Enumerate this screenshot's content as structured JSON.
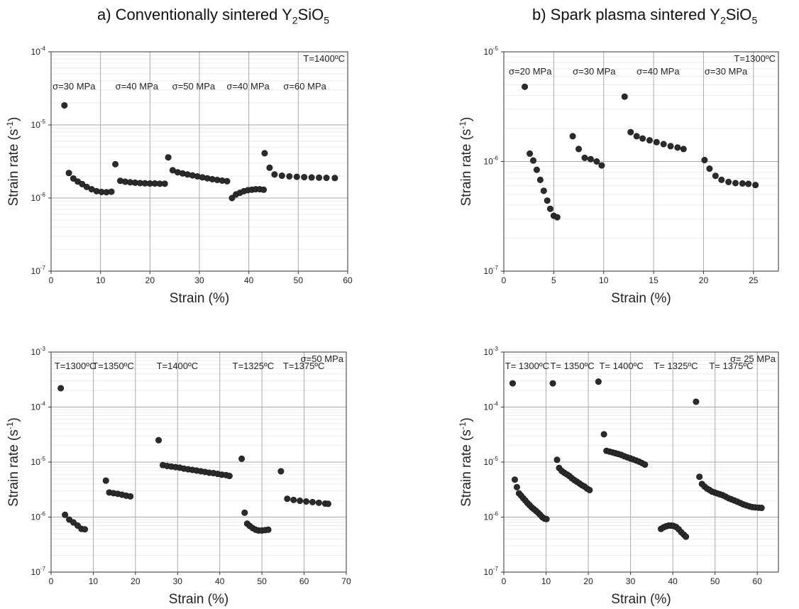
{
  "titles": {
    "left": {
      "pre": "a) Conventionally sintered Y",
      "sub1": "2",
      "mid": "SiO",
      "sub2": "5"
    },
    "right": {
      "pre": "b) Spark plasma sintered Y",
      "sub1": "2",
      "mid": "SiO",
      "sub2": "5"
    }
  },
  "chart_data": [
    {
      "type": "scatter",
      "panel": "top-left",
      "xlabel": "Strain (%)",
      "ylabel": "Strain rate (s-1)",
      "yscale": "log",
      "xlim": [
        0,
        60
      ],
      "ylim": [
        1e-07,
        0.0001
      ],
      "xticks": [
        0,
        10,
        20,
        30,
        40,
        50,
        60
      ],
      "yticks": [
        {
          "v": 1e-07,
          "exp": "-7"
        },
        {
          "v": 1e-06,
          "exp": "-6"
        },
        {
          "v": 1e-05,
          "exp": "-5"
        },
        {
          "v": 0.0001,
          "exp": "-4"
        }
      ],
      "condition": "T=1400ºC",
      "segment_labels": [
        {
          "text": "σ=30 MPa",
          "x": 0.3
        },
        {
          "text": "σ=40 MPa",
          "x": 13
        },
        {
          "text": "σ=50 MPa",
          "x": 24.5
        },
        {
          "text": "σ=40 MPa",
          "x": 35.5
        },
        {
          "text": "σ=60 MPa",
          "x": 47
        }
      ],
      "grid": true,
      "points": [
        [
          2.7,
          1.85e-05
        ],
        [
          3.6,
          2.2e-06
        ],
        [
          4.5,
          1.85e-06
        ],
        [
          5.4,
          1.68e-06
        ],
        [
          6.3,
          1.55e-06
        ],
        [
          7.2,
          1.42e-06
        ],
        [
          8.2,
          1.32e-06
        ],
        [
          9.2,
          1.24e-06
        ],
        [
          10.2,
          1.21e-06
        ],
        [
          11.2,
          1.2e-06
        ],
        [
          12.2,
          1.22e-06
        ],
        [
          13,
          2.9e-06
        ],
        [
          14,
          1.72e-06
        ],
        [
          15,
          1.67e-06
        ],
        [
          16,
          1.64e-06
        ],
        [
          17,
          1.62e-06
        ],
        [
          18,
          1.6e-06
        ],
        [
          19,
          1.59e-06
        ],
        [
          20,
          1.58e-06
        ],
        [
          21,
          1.58e-06
        ],
        [
          22,
          1.57e-06
        ],
        [
          23,
          1.57e-06
        ],
        [
          23.7,
          3.6e-06
        ],
        [
          24.6,
          2.4e-06
        ],
        [
          25.6,
          2.25e-06
        ],
        [
          26.6,
          2.17e-06
        ],
        [
          27.6,
          2.1e-06
        ],
        [
          28.6,
          2.04e-06
        ],
        [
          29.6,
          1.98e-06
        ],
        [
          30.6,
          1.92e-06
        ],
        [
          31.6,
          1.86e-06
        ],
        [
          32.6,
          1.81e-06
        ],
        [
          33.6,
          1.77e-06
        ],
        [
          34.6,
          1.73e-06
        ],
        [
          35.6,
          1.7e-06
        ],
        [
          36.6,
          1e-06
        ],
        [
          37.4,
          1.12e-06
        ],
        [
          38.2,
          1.18e-06
        ],
        [
          39,
          1.24e-06
        ],
        [
          39.8,
          1.28e-06
        ],
        [
          40.6,
          1.3e-06
        ],
        [
          41.4,
          1.32e-06
        ],
        [
          42.2,
          1.32e-06
        ],
        [
          43,
          1.3e-06
        ],
        [
          43.2,
          4.1e-06
        ],
        [
          44.2,
          2.6e-06
        ],
        [
          45.2,
          2.1e-06
        ],
        [
          46.7,
          2.02e-06
        ],
        [
          48.2,
          1.98e-06
        ],
        [
          49.7,
          1.95e-06
        ],
        [
          51.2,
          1.93e-06
        ],
        [
          52.7,
          1.91e-06
        ],
        [
          54.2,
          1.9e-06
        ],
        [
          55.7,
          1.89e-06
        ],
        [
          57.4,
          1.88e-06
        ]
      ]
    },
    {
      "type": "scatter",
      "panel": "top-right",
      "xlabel": "Strain (%)",
      "ylabel": "Strain rate (s-1)",
      "yscale": "log",
      "xlim": [
        0,
        27.5
      ],
      "ylim": [
        1e-07,
        1e-05
      ],
      "xticks": [
        0,
        5,
        10,
        15,
        20,
        25
      ],
      "yticks": [
        {
          "v": 1e-07,
          "exp": "-7"
        },
        {
          "v": 1e-06,
          "exp": "-6"
        },
        {
          "v": 1e-05,
          "exp": "-5"
        }
      ],
      "condition": "T=1300ºC",
      "segment_labels": [
        {
          "text": "σ=20 MPa",
          "x": 0.5
        },
        {
          "text": "σ=30 MPa",
          "x": 6.9
        },
        {
          "text": "σ=40 MPa",
          "x": 13.3
        },
        {
          "text": "σ=30 MPa",
          "x": 20.1
        }
      ],
      "grid": true,
      "points": [
        [
          2.1,
          4.8e-06
        ],
        [
          2.6,
          1.18e-06
        ],
        [
          2.95,
          1.02e-06
        ],
        [
          3.3,
          8.4e-07
        ],
        [
          3.65,
          6.8e-07
        ],
        [
          4,
          5.4e-07
        ],
        [
          4.35,
          4.4e-07
        ],
        [
          4.65,
          3.7e-07
        ],
        [
          5.0,
          3.2e-07
        ],
        [
          5.35,
          3.1e-07
        ],
        [
          6.9,
          1.7e-06
        ],
        [
          7.5,
          1.3e-06
        ],
        [
          8.1,
          1.08e-06
        ],
        [
          8.7,
          1.05e-06
        ],
        [
          9.3,
          1e-06
        ],
        [
          9.8,
          9.2e-07
        ],
        [
          12.1,
          3.9e-06
        ],
        [
          12.7,
          1.85e-06
        ],
        [
          13.3,
          1.7e-06
        ],
        [
          13.9,
          1.62e-06
        ],
        [
          14.6,
          1.56e-06
        ],
        [
          15.3,
          1.5e-06
        ],
        [
          16,
          1.44e-06
        ],
        [
          16.7,
          1.38e-06
        ],
        [
          17.4,
          1.34e-06
        ],
        [
          18,
          1.3e-06
        ],
        [
          20.1,
          1.03e-06
        ],
        [
          20.6,
          8.6e-07
        ],
        [
          21.2,
          7.4e-07
        ],
        [
          21.8,
          6.8e-07
        ],
        [
          22.5,
          6.5e-07
        ],
        [
          23.2,
          6.35e-07
        ],
        [
          23.9,
          6.3e-07
        ],
        [
          24.5,
          6.25e-07
        ],
        [
          25.2,
          6.1e-07
        ]
      ]
    },
    {
      "type": "scatter",
      "panel": "bottom-left",
      "xlabel": "Strain (%)",
      "ylabel": "Strain rate (s-1)",
      "yscale": "log",
      "xlim": [
        0,
        70
      ],
      "ylim": [
        1e-07,
        0.001
      ],
      "xticks": [
        0,
        10,
        20,
        30,
        40,
        50,
        60,
        70
      ],
      "yticks": [
        {
          "v": 1e-07,
          "exp": "-7"
        },
        {
          "v": 1e-06,
          "exp": "-6"
        },
        {
          "v": 1e-05,
          "exp": "-5"
        },
        {
          "v": 0.0001,
          "exp": "-4"
        },
        {
          "v": 0.001,
          "exp": "-3"
        }
      ],
      "condition": "σ=50 MPa",
      "segment_labels": [
        {
          "text": "T=1300ºC",
          "x": 0.8
        },
        {
          "text": "T=1350ºC",
          "x": 9.8
        },
        {
          "text": "T=1400ºC",
          "x": 25
        },
        {
          "text": "T=1325ºC",
          "x": 43
        },
        {
          "text": "T=1375ºC",
          "x": 55
        }
      ],
      "grid": true,
      "points": [
        [
          2.3,
          0.00022
        ],
        [
          3.3,
          1.1e-06
        ],
        [
          4.3,
          9e-07
        ],
        [
          5.3,
          8e-07
        ],
        [
          6.3,
          7e-07
        ],
        [
          7.2,
          6.1e-07
        ],
        [
          8.0,
          6e-07
        ],
        [
          13,
          4.6e-06
        ],
        [
          13.8,
          2.8e-06
        ],
        [
          14.8,
          2.72e-06
        ],
        [
          15.8,
          2.65e-06
        ],
        [
          16.8,
          2.55e-06
        ],
        [
          17.8,
          2.45e-06
        ],
        [
          18.8,
          2.38e-06
        ],
        [
          25.5,
          2.5e-05
        ],
        [
          26.5,
          8.8e-06
        ],
        [
          27.5,
          8.5e-06
        ],
        [
          28.5,
          8.3e-06
        ],
        [
          29.5,
          8.1e-06
        ],
        [
          30.5,
          7.9e-06
        ],
        [
          31.5,
          7.6e-06
        ],
        [
          32.5,
          7.4e-06
        ],
        [
          33.5,
          7.2e-06
        ],
        [
          34.5,
          7e-06
        ],
        [
          35.5,
          6.8e-06
        ],
        [
          36.5,
          6.6e-06
        ],
        [
          37.5,
          6.4e-06
        ],
        [
          38.5,
          6.3e-06
        ],
        [
          39.5,
          6.1e-06
        ],
        [
          40.5,
          5.9e-06
        ],
        [
          41.5,
          5.8e-06
        ],
        [
          42.3,
          5.6e-06
        ],
        [
          45.2,
          1.15e-05
        ],
        [
          45.9,
          1.2e-06
        ],
        [
          46.5,
          7.6e-07
        ],
        [
          47.1,
          6.9e-07
        ],
        [
          47.8,
          6.3e-07
        ],
        [
          48.5,
          5.9e-07
        ],
        [
          49.2,
          5.7e-07
        ],
        [
          50,
          5.7e-07
        ],
        [
          50.8,
          5.8e-07
        ],
        [
          51.5,
          5.9e-07
        ],
        [
          54.5,
          6.8e-06
        ],
        [
          56,
          2.15e-06
        ],
        [
          57.5,
          2.05e-06
        ],
        [
          59,
          1.98e-06
        ],
        [
          60.5,
          1.92e-06
        ],
        [
          62,
          1.87e-06
        ],
        [
          63.5,
          1.82e-06
        ],
        [
          65,
          1.76e-06
        ],
        [
          65.7,
          1.74e-06
        ]
      ]
    },
    {
      "type": "scatter",
      "panel": "bottom-right",
      "xlabel": "Strain (%)",
      "ylabel": "Strain rate (s-1)",
      "yscale": "log",
      "xlim": [
        0,
        65
      ],
      "ylim": [
        1e-07,
        0.001
      ],
      "xticks": [
        0,
        10,
        20,
        30,
        40,
        50,
        60
      ],
      "yticks": [
        {
          "v": 1e-07,
          "exp": "-7"
        },
        {
          "v": 1e-06,
          "exp": "-6"
        },
        {
          "v": 1e-05,
          "exp": "-5"
        },
        {
          "v": 0.0001,
          "exp": "-4"
        },
        {
          "v": 0.001,
          "exp": "-3"
        }
      ],
      "condition": "σ= 25 MPa",
      "segment_labels": [
        {
          "text": "T= 1300ºC",
          "x": 0.3
        },
        {
          "text": "T= 1350ºC",
          "x": 11
        },
        {
          "text": "T= 1400ºC",
          "x": 22.6
        },
        {
          "text": "T= 1325ºC",
          "x": 35.5
        },
        {
          "text": "T= 1375ºC",
          "x": 48.6
        }
      ],
      "grid": true,
      "points": [
        [
          2.1,
          0.00027
        ],
        [
          2.6,
          4.8e-06
        ],
        [
          3.1,
          3.5e-06
        ],
        [
          3.6,
          2.7e-06
        ],
        [
          4.1,
          2.45e-06
        ],
        [
          4.6,
          2.2e-06
        ],
        [
          5.1,
          2e-06
        ],
        [
          5.6,
          1.8e-06
        ],
        [
          6.1,
          1.65e-06
        ],
        [
          6.6,
          1.5e-06
        ],
        [
          7.1,
          1.4e-06
        ],
        [
          7.6,
          1.3e-06
        ],
        [
          8.1,
          1.2e-06
        ],
        [
          8.6,
          1.1e-06
        ],
        [
          9.1,
          1e-06
        ],
        [
          9.6,
          9.4e-07
        ],
        [
          10.1,
          9.2e-07
        ],
        [
          11.6,
          0.00027
        ],
        [
          12.6,
          1.1e-05
        ],
        [
          13.1,
          7.8e-06
        ],
        [
          13.7,
          6.9e-06
        ],
        [
          14.3,
          6.4e-06
        ],
        [
          14.9,
          6e-06
        ],
        [
          15.5,
          5.6e-06
        ],
        [
          16.1,
          5.1e-06
        ],
        [
          16.7,
          4.7e-06
        ],
        [
          17.3,
          4.4e-06
        ],
        [
          17.9,
          4.1e-06
        ],
        [
          18.5,
          3.8e-06
        ],
        [
          19.1,
          3.6e-06
        ],
        [
          19.7,
          3.3e-06
        ],
        [
          20.3,
          3.1e-06
        ],
        [
          22.4,
          0.00029
        ],
        [
          23.7,
          3.2e-05
        ],
        [
          24.3,
          1.6e-05
        ],
        [
          25,
          1.55e-05
        ],
        [
          25.7,
          1.5e-05
        ],
        [
          26.4,
          1.45e-05
        ],
        [
          27.1,
          1.4e-05
        ],
        [
          27.8,
          1.35e-05
        ],
        [
          28.5,
          1.28e-05
        ],
        [
          29.2,
          1.22e-05
        ],
        [
          29.9,
          1.17e-05
        ],
        [
          30.6,
          1.12e-05
        ],
        [
          31.3,
          1.07e-05
        ],
        [
          32,
          1.02e-05
        ],
        [
          32.7,
          9.6e-06
        ],
        [
          33.4,
          9e-06
        ],
        [
          37.2,
          6.1e-07
        ],
        [
          37.8,
          6.5e-07
        ],
        [
          38.4,
          6.8e-07
        ],
        [
          39,
          7e-07
        ],
        [
          39.6,
          7e-07
        ],
        [
          40.2,
          6.9e-07
        ],
        [
          40.8,
          6.6e-07
        ],
        [
          41.4,
          6e-07
        ],
        [
          42,
          5.3e-07
        ],
        [
          42.6,
          4.8e-07
        ],
        [
          43.1,
          4.4e-07
        ],
        [
          45.5,
          0.000125
        ],
        [
          46.3,
          5.4e-06
        ],
        [
          46.9,
          4e-06
        ],
        [
          47.5,
          3.6e-06
        ],
        [
          48.1,
          3.3e-06
        ],
        [
          48.7,
          3.1e-06
        ],
        [
          49.3,
          2.9e-06
        ],
        [
          49.9,
          2.8e-06
        ],
        [
          50.5,
          2.7e-06
        ],
        [
          51.1,
          2.6e-06
        ],
        [
          51.8,
          2.5e-06
        ],
        [
          52.5,
          2.35e-06
        ],
        [
          53.2,
          2.2e-06
        ],
        [
          53.9,
          2.1e-06
        ],
        [
          54.6,
          2e-06
        ],
        [
          55.3,
          1.9e-06
        ],
        [
          56,
          1.8e-06
        ],
        [
          56.7,
          1.7e-06
        ],
        [
          57.4,
          1.63e-06
        ],
        [
          58.1,
          1.57e-06
        ],
        [
          58.8,
          1.52e-06
        ],
        [
          59.5,
          1.5e-06
        ],
        [
          60.3,
          1.48e-06
        ],
        [
          61,
          1.47e-06
        ]
      ]
    }
  ]
}
